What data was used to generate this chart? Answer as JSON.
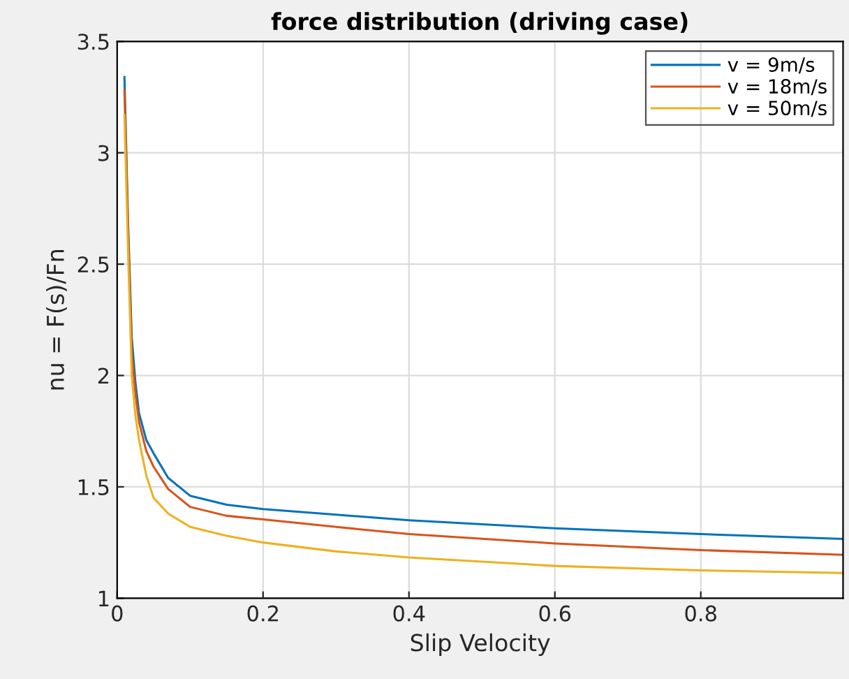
{
  "chart_data": {
    "type": "line",
    "title": "force distribution (driving case)",
    "xlabel": "Slip Velocity",
    "ylabel": "nu = F(s)/Fn",
    "x": [
      0.01,
      0.015,
      0.02,
      0.025,
      0.03,
      0.04,
      0.05,
      0.07,
      0.1,
      0.15,
      0.2,
      0.3,
      0.4,
      0.6,
      0.8,
      0.995
    ],
    "series": [
      {
        "name": "v = 9m/s",
        "color": "#0072bd",
        "values": [
          3.34,
          2.68,
          2.17,
          1.97,
          1.83,
          1.71,
          1.65,
          1.54,
          1.46,
          1.42,
          1.4,
          1.375,
          1.35,
          1.314,
          1.288,
          1.266
        ]
      },
      {
        "name": "v = 18m/s",
        "color": "#d95319",
        "values": [
          3.28,
          2.64,
          2.1,
          1.92,
          1.79,
          1.66,
          1.59,
          1.49,
          1.41,
          1.37,
          1.354,
          1.32,
          1.288,
          1.246,
          1.216,
          1.195
        ]
      },
      {
        "name": "v = 50m/s",
        "color": "#edb120",
        "values": [
          3.17,
          2.55,
          2.0,
          1.82,
          1.71,
          1.55,
          1.45,
          1.38,
          1.32,
          1.28,
          1.25,
          1.21,
          1.183,
          1.145,
          1.125,
          1.113
        ]
      }
    ],
    "xlim": [
      0,
      0.995
    ],
    "ylim": [
      1,
      3.5
    ],
    "xticks": [
      0,
      0.2,
      0.4,
      0.6,
      0.8
    ],
    "yticks": [
      1,
      1.5,
      2,
      2.5,
      3,
      3.5
    ],
    "grid": true,
    "legend": "top right",
    "marker": "none",
    "line_style": "solid"
  }
}
